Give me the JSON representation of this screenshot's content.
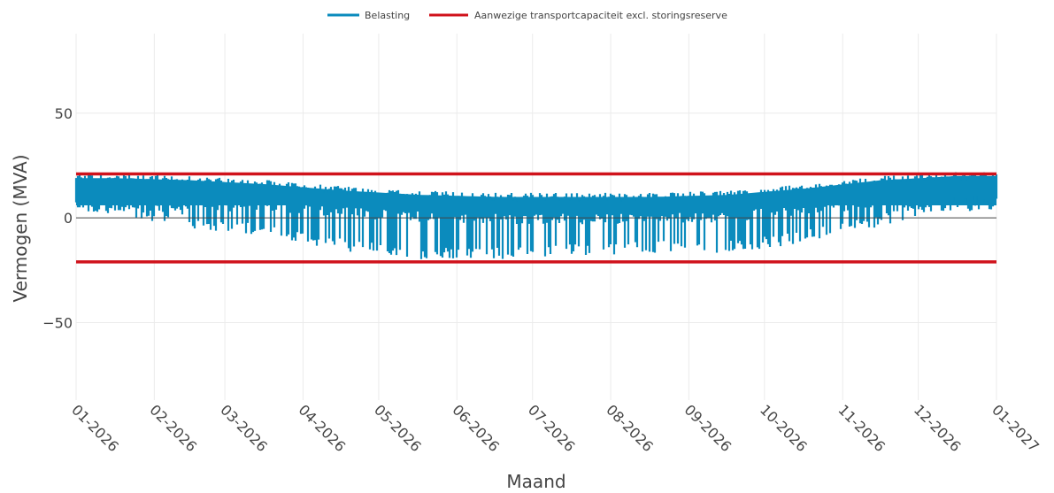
{
  "chart_data": {
    "type": "line",
    "xlabel": "Maand",
    "ylabel": "Vermogen (MVA)",
    "x_tick_labels": [
      "01-2026",
      "02-2026",
      "03-2026",
      "04-2026",
      "05-2026",
      "06-2026",
      "07-2026",
      "08-2026",
      "09-2026",
      "10-2026",
      "11-2026",
      "12-2026",
      "01-2027"
    ],
    "x_ticks": [
      "2026-01-01",
      "2026-02-01",
      "2026-03-01",
      "2026-04-01",
      "2026-05-01",
      "2026-06-01",
      "2026-07-01",
      "2026-08-01",
      "2026-09-01",
      "2026-10-01",
      "2026-11-01",
      "2026-12-01",
      "2027-01-01"
    ],
    "xlim": [
      "2026-01-01",
      "2027-01-01"
    ],
    "ylim": [
      -87,
      88
    ],
    "y_ticks": [
      -50,
      0,
      50
    ],
    "y_tick_labels": [
      "−50",
      "0",
      "50"
    ],
    "grid": true,
    "legend_position": "top-center",
    "series": [
      {
        "name": "Belasting",
        "color": "#0b8bbd",
        "monthly_envelope": {
          "months": [
            "01-2026",
            "02-2026",
            "03-2026",
            "04-2026",
            "05-2026",
            "06-2026",
            "07-2026",
            "08-2026",
            "09-2026",
            "10-2026",
            "11-2026",
            "12-2026"
          ],
          "max": [
            21,
            20,
            18,
            15,
            13,
            12,
            12,
            12,
            13,
            16,
            20,
            22
          ],
          "min": [
            2,
            -5,
            -9,
            -16,
            -20,
            -20,
            -18,
            -17,
            -17,
            -12,
            -4,
            5
          ]
        }
      },
      {
        "name": "Aanwezige transportcapaciteit excl. storingsreserve",
        "color": "#d0121b",
        "values_upper": 21,
        "values_lower": -21
      }
    ]
  }
}
